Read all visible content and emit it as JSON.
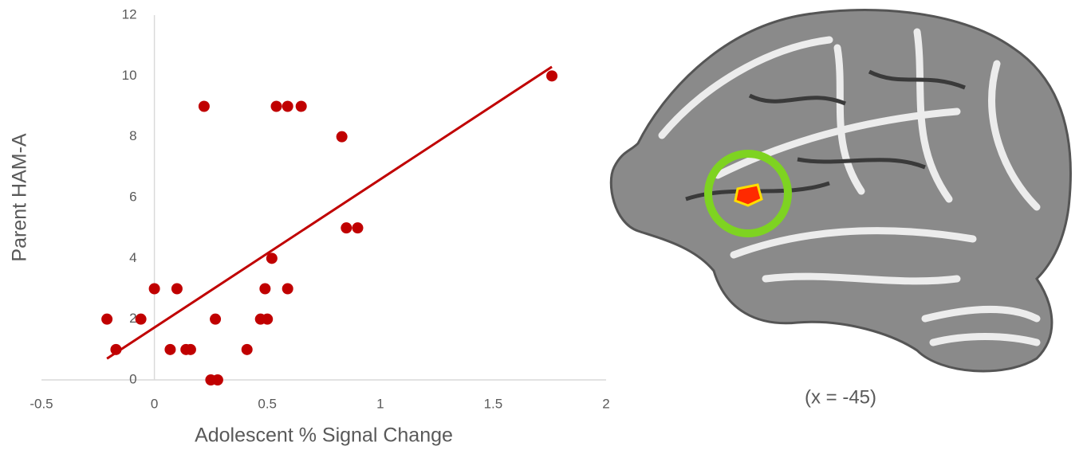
{
  "chart_data": {
    "type": "scatter",
    "x_label": "Adolescent % Signal Change",
    "y_label": "Parent HAM-A",
    "color": "#c00000",
    "x": [
      -0.21,
      -0.17,
      -0.06,
      0.0,
      0.1,
      0.07,
      0.14,
      0.16,
      0.22,
      0.25,
      0.28,
      0.27,
      0.41,
      0.47,
      0.5,
      0.49,
      0.52,
      0.54,
      0.59,
      0.59,
      0.65,
      0.83,
      0.85,
      0.9,
      1.76
    ],
    "values": [
      2,
      1,
      2,
      3,
      3,
      1,
      1,
      1,
      9,
      0,
      0,
      2,
      1,
      2,
      2,
      3,
      4,
      9,
      9,
      3,
      9,
      8,
      5,
      5,
      10
    ],
    "trendline": {
      "x": [
        -0.21,
        1.76
      ],
      "y": [
        0.7,
        10.3
      ]
    },
    "xlim": [
      -0.5,
      2
    ],
    "xticks": [
      -0.5,
      0,
      0.5,
      1,
      1.5,
      2
    ],
    "ylim": [
      0,
      12
    ],
    "yticks": [
      0,
      2,
      4,
      6,
      8,
      10,
      12
    ],
    "grid": false
  },
  "image_caption": "(x = -45)"
}
